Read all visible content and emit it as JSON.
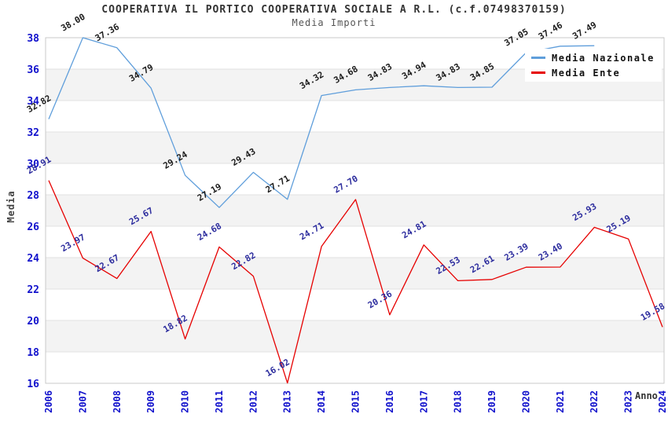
{
  "header": {
    "title": "COOPERATIVA IL PORTICO COOPERATIVA SOCIALE A R.L. (c.f.07498370159)",
    "subtitle": "Media Importi"
  },
  "axes": {
    "y_label": "Media",
    "x_label": "Anno"
  },
  "legend": {
    "position": "top-right",
    "items": [
      {
        "label": "Media Nazionale",
        "color": "#5f9edb"
      },
      {
        "label": "Media Ente",
        "color": "#e60000"
      }
    ]
  },
  "colors": {
    "axis_tick_text": "#1111cc",
    "band_gray": "#f3f3f3",
    "gridline": "#e2e2e2",
    "plot_border": "#c9c9c9",
    "label_nazionale": "#1c1c1c",
    "label_ente": "#2d2d9e"
  },
  "chart_data": {
    "type": "line",
    "title": "COOPERATIVA IL PORTICO COOPERATIVA SOCIALE A R.L. (c.f.07498370159)",
    "subtitle": "Media Importi",
    "xlabel": "Anno",
    "ylabel": "Media",
    "ylim": [
      16,
      38
    ],
    "y_ticks": [
      16,
      18,
      20,
      22,
      24,
      26,
      28,
      30,
      32,
      34,
      36,
      38
    ],
    "grid": true,
    "alternating_bands": true,
    "legend_position": "top-right",
    "categories": [
      "2006",
      "2007",
      "2008",
      "2009",
      "2010",
      "2011",
      "2012",
      "2013",
      "2014",
      "2015",
      "2016",
      "2017",
      "2018",
      "2019",
      "2020",
      "2021",
      "2022",
      "2023",
      "2024"
    ],
    "series": [
      {
        "name": "Media Nazionale",
        "color": "#5f9edb",
        "label_color": "#1c1c1c",
        "values": [
          32.82,
          38.0,
          37.36,
          34.79,
          29.24,
          27.19,
          29.43,
          27.71,
          34.32,
          34.68,
          34.83,
          34.94,
          34.83,
          34.85,
          37.05,
          37.46,
          37.49,
          null,
          null
        ],
        "note": "2021 label partially hidden behind legend (read as 37.46); 2023-2024 not visible"
      },
      {
        "name": "Media Ente",
        "color": "#e60000",
        "label_color": "#2d2d9e",
        "values": [
          28.91,
          23.97,
          22.67,
          25.67,
          18.82,
          24.68,
          22.82,
          16.02,
          24.71,
          27.7,
          20.36,
          24.81,
          22.53,
          22.61,
          23.39,
          23.4,
          25.93,
          25.19,
          19.58
        ]
      }
    ]
  }
}
